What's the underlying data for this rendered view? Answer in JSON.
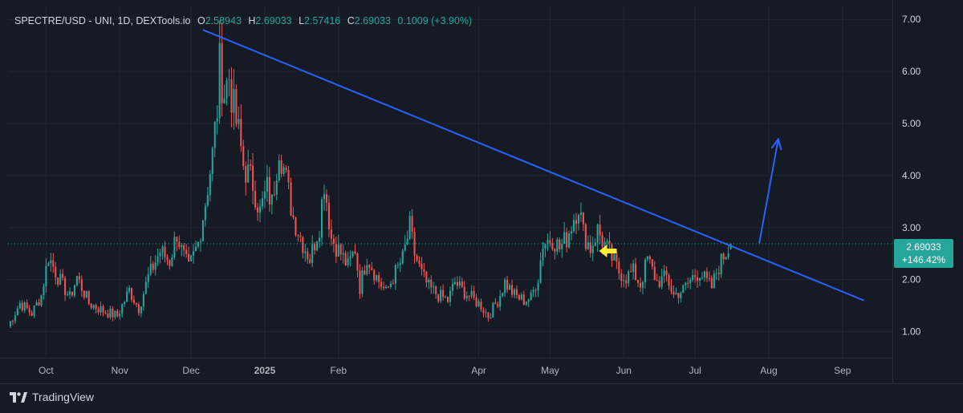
{
  "legend": {
    "symbol": "SPECTRE/USD - UNI, 1D, DEXTools.io",
    "open_label": "O",
    "open": "2.58943",
    "high_label": "H",
    "high": "2.69033",
    "low_label": "L",
    "low": "2.57416",
    "close_label": "C",
    "close": "2.69033",
    "change": "0.1009 (+3.90%)"
  },
  "price_tag": {
    "price": "2.69033",
    "change_pct": "+146.42%"
  },
  "brand": {
    "name": "TradingView"
  },
  "colors": {
    "background": "#161a25",
    "grid": "#232735",
    "up": "#26a69a",
    "down": "#ef5350",
    "trendline": "#2962ff",
    "arrow": "#2962ff",
    "marker": "#ffeb3b",
    "text": "#b2b5be"
  },
  "icons": {
    "brand_logo": "tradingview-logo-icon",
    "marker": "yellow-arrow-left-icon"
  },
  "chart_data": {
    "type": "candlestick",
    "title": "SPECTRE/USD - UNI, 1D, DEXTools.io",
    "x_axis": {
      "type": "date",
      "range": [
        "2024-09-15",
        "2025-09-22"
      ],
      "tick_labels": [
        {
          "date": "2024-10-01",
          "label": "Oct"
        },
        {
          "date": "2024-11-01",
          "label": "Nov"
        },
        {
          "date": "2024-12-01",
          "label": "Dec"
        },
        {
          "date": "2025-01-01",
          "label": "2025"
        },
        {
          "date": "2025-02-01",
          "label": "Feb"
        },
        {
          "date": "2025-04-01",
          "label": "Apr"
        },
        {
          "date": "2025-05-01",
          "label": "May"
        },
        {
          "date": "2025-06-01",
          "label": "Jun"
        },
        {
          "date": "2025-07-01",
          "label": "Jul"
        },
        {
          "date": "2025-08-01",
          "label": "Aug"
        },
        {
          "date": "2025-09-01",
          "label": "Sep"
        }
      ]
    },
    "y_axis": {
      "range": [
        0.5,
        7.25
      ],
      "ticks": [
        "1.00",
        "2.00",
        "3.00",
        "4.00",
        "5.00",
        "6.00",
        "7.00"
      ],
      "position": "right"
    },
    "grid": true,
    "series_anchors": [
      [
        "2024-09-15",
        1.1
      ],
      [
        "2024-09-20",
        1.55
      ],
      [
        "2024-09-25",
        1.35
      ],
      [
        "2024-09-29",
        1.7
      ],
      [
        "2024-10-02",
        2.45
      ],
      [
        "2024-10-06",
        2.05
      ],
      [
        "2024-10-11",
        1.65
      ],
      [
        "2024-10-14",
        2.05
      ],
      [
        "2024-10-19",
        1.55
      ],
      [
        "2024-10-25",
        1.4
      ],
      [
        "2024-10-31",
        1.3
      ],
      [
        "2024-11-05",
        1.8
      ],
      [
        "2024-11-09",
        1.45
      ],
      [
        "2024-11-13",
        2.05
      ],
      [
        "2024-11-18",
        2.55
      ],
      [
        "2024-11-22",
        2.35
      ],
      [
        "2024-11-25",
        2.9
      ],
      [
        "2024-11-27",
        2.55
      ],
      [
        "2024-11-30",
        2.2
      ],
      [
        "2024-12-04",
        2.7
      ],
      [
        "2024-12-07",
        3.5
      ],
      [
        "2024-12-10",
        4.4
      ],
      [
        "2024-12-12",
        5.3
      ],
      [
        "2024-12-13",
        6.1
      ],
      [
        "2024-12-15",
        5.6
      ],
      [
        "2024-12-17",
        5.9
      ],
      [
        "2024-12-19",
        5.25
      ],
      [
        "2024-12-21",
        4.8
      ],
      [
        "2024-12-23",
        4.2
      ],
      [
        "2024-12-27",
        3.85
      ],
      [
        "2024-12-30",
        3.3
      ],
      [
        "2025-01-02",
        3.75
      ],
      [
        "2025-01-04",
        3.45
      ],
      [
        "2025-01-07",
        4.6
      ],
      [
        "2025-01-10",
        3.9
      ],
      [
        "2025-01-13",
        3.2
      ],
      [
        "2025-01-17",
        2.7
      ],
      [
        "2025-01-20",
        2.4
      ],
      [
        "2025-01-24",
        3.05
      ],
      [
        "2025-01-26",
        3.9
      ],
      [
        "2025-01-29",
        2.8
      ],
      [
        "2025-02-02",
        2.5
      ],
      [
        "2025-02-05",
        2.25
      ],
      [
        "2025-02-08",
        2.6
      ],
      [
        "2025-02-10",
        1.85
      ],
      [
        "2025-02-13",
        2.45
      ],
      [
        "2025-02-17",
        2.05
      ],
      [
        "2025-02-21",
        1.75
      ],
      [
        "2025-02-24",
        2.05
      ],
      [
        "2025-02-28",
        2.4
      ],
      [
        "2025-03-03",
        3.0
      ],
      [
        "2025-03-05",
        2.5
      ],
      [
        "2025-03-08",
        2.1
      ],
      [
        "2025-03-11",
        1.85
      ],
      [
        "2025-03-15",
        1.7
      ],
      [
        "2025-03-19",
        1.6
      ],
      [
        "2025-03-22",
        1.95
      ],
      [
        "2025-03-25",
        1.8
      ],
      [
        "2025-03-29",
        1.65
      ],
      [
        "2025-04-02",
        1.5
      ],
      [
        "2025-04-05",
        1.3
      ],
      [
        "2025-04-09",
        1.6
      ],
      [
        "2025-04-12",
        1.95
      ],
      [
        "2025-04-16",
        1.7
      ],
      [
        "2025-04-20",
        1.6
      ],
      [
        "2025-04-23",
        1.65
      ],
      [
        "2025-04-26",
        2.05
      ],
      [
        "2025-04-28",
        2.7
      ],
      [
        "2025-05-02",
        2.8
      ],
      [
        "2025-05-05",
        2.6
      ],
      [
        "2025-05-08",
        2.8
      ],
      [
        "2025-05-11",
        3.2
      ],
      [
        "2025-05-13",
        3.45
      ],
      [
        "2025-05-15",
        2.9
      ],
      [
        "2025-05-18",
        2.6
      ],
      [
        "2025-05-21",
        2.95
      ],
      [
        "2025-05-23",
        2.75
      ],
      [
        "2025-05-26",
        2.5
      ],
      [
        "2025-05-30",
        2.15
      ],
      [
        "2025-06-02",
        2.05
      ],
      [
        "2025-06-05",
        2.15
      ],
      [
        "2025-06-08",
        1.9
      ],
      [
        "2025-06-11",
        2.4
      ],
      [
        "2025-06-15",
        1.95
      ],
      [
        "2025-06-19",
        2.05
      ],
      [
        "2025-06-22",
        1.7
      ],
      [
        "2025-06-26",
        1.8
      ],
      [
        "2025-06-30",
        2.05
      ],
      [
        "2025-07-03",
        2.15
      ],
      [
        "2025-07-06",
        1.95
      ],
      [
        "2025-07-08",
        1.85
      ],
      [
        "2025-07-10",
        2.15
      ],
      [
        "2025-07-13",
        2.45
      ],
      [
        "2025-07-16",
        2.69033
      ]
    ],
    "last_candle": {
      "date": "2025-07-16",
      "open": 2.58943,
      "high": 2.69033,
      "low": 2.57416,
      "close": 2.69033
    },
    "annotations": [
      {
        "type": "trendline",
        "color": "#2962ff",
        "from": {
          "date": "2024-12-06",
          "price": 6.8
        },
        "to": {
          "date": "2025-09-10",
          "price": 1.6
        }
      },
      {
        "type": "arrow-up",
        "color": "#2962ff",
        "from": {
          "date": "2025-07-28",
          "price": 2.7
        },
        "to": {
          "date": "2025-08-05",
          "price": 4.7
        }
      },
      {
        "type": "arrow-left",
        "color": "#ffeb3b",
        "at": {
          "date": "2025-05-25",
          "price": 2.55
        }
      },
      {
        "type": "price-line",
        "price": 2.69033,
        "style": "dotted",
        "color": "#26a69a"
      }
    ]
  }
}
